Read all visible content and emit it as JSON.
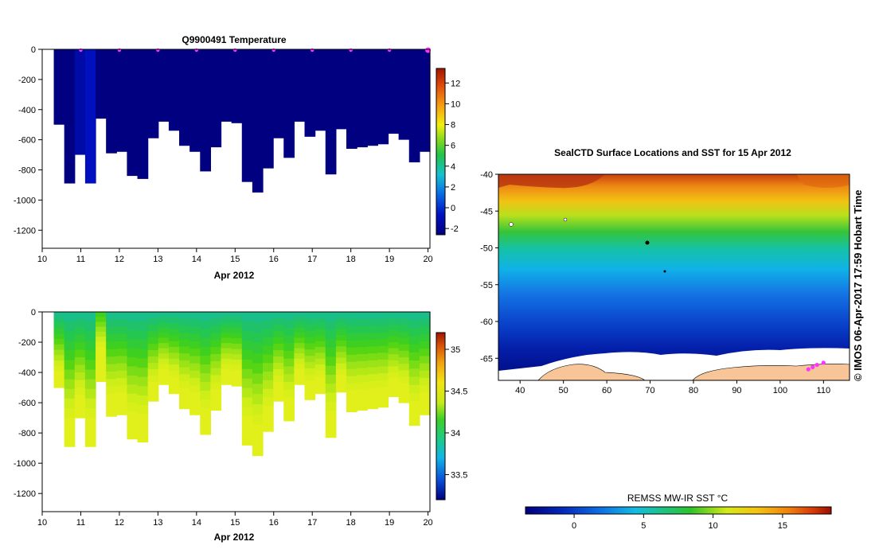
{
  "chart_data": [
    {
      "type": "heatmap",
      "title": "Q9900491  Temperature",
      "xlabel": "Apr 2012",
      "x_ticks": [
        "10",
        "11",
        "12",
        "13",
        "14",
        "15",
        "16",
        "17",
        "18",
        "19",
        "20"
      ],
      "y_ticks": [
        "0",
        "-200",
        "-400",
        "-600",
        "-800",
        "-1000",
        "-1200"
      ],
      "xlim": [
        10,
        20.05
      ],
      "ylim": [
        -1320,
        0
      ],
      "colorbar": {
        "ticks": [
          "-2",
          "0",
          "2",
          "4",
          "6",
          "8",
          "10",
          "12"
        ],
        "range": [
          -2.6,
          13.4
        ]
      },
      "surface_markers_days": [
        11,
        12,
        13,
        14,
        15,
        16,
        17,
        18,
        19,
        20
      ],
      "profile_depths_m": [
        -500,
        -890,
        -700,
        -890,
        -460,
        -690,
        -680,
        -840,
        -860,
        -590,
        -480,
        -540,
        -640,
        -680,
        -810,
        -650,
        -480,
        -490,
        -880,
        -950,
        -790,
        -590,
        -720,
        -480,
        -580,
        -540,
        -830,
        -530,
        -660,
        -650,
        -640,
        -630,
        -560,
        -600,
        -750,
        -680
      ],
      "profile_values_c": [
        0,
        0,
        0.5,
        1,
        0,
        0,
        0,
        0,
        0,
        0,
        0,
        0,
        0,
        0,
        0,
        0,
        0,
        0,
        0,
        0,
        0,
        0,
        0,
        0,
        0,
        0,
        0,
        0,
        0,
        0,
        0,
        0,
        0,
        0,
        0,
        0
      ]
    },
    {
      "type": "heatmap",
      "title": "",
      "xlabel": "Apr 2012",
      "x_ticks": [
        "10",
        "11",
        "12",
        "13",
        "14",
        "15",
        "16",
        "17",
        "18",
        "19",
        "20"
      ],
      "y_ticks": [
        "0",
        "-200",
        "-400",
        "-600",
        "-800",
        "-1000",
        "-1200"
      ],
      "xlim": [
        10,
        20.05
      ],
      "ylim": [
        -1320,
        0
      ],
      "colorbar": {
        "ticks": [
          "33.5",
          "34",
          "34.5",
          "35"
        ],
        "range": [
          33.2,
          35.2
        ]
      },
      "profile_depths_m": [
        -500,
        -890,
        -700,
        -890,
        -460,
        -690,
        -680,
        -840,
        -860,
        -590,
        -480,
        -540,
        -640,
        -680,
        -810,
        -650,
        -480,
        -490,
        -880,
        -950,
        -790,
        -590,
        -720,
        -480,
        -580,
        -540,
        -830,
        -530,
        -660,
        -650,
        -640,
        -630,
        -560,
        -600,
        -750,
        -680
      ]
    },
    {
      "type": "heatmap",
      "title": "SealCTD Surface Locations and SST for 15 Apr 2012",
      "xlabel": "",
      "ylabel": "",
      "x_ticks": [
        "40",
        "50",
        "60",
        "70",
        "80",
        "90",
        "100",
        "110"
      ],
      "y_ticks": [
        "-40",
        "-45",
        "-50",
        "-55",
        "-60",
        "-65"
      ],
      "xlim": [
        35,
        116
      ],
      "ylim": [
        -68,
        -40
      ],
      "colorbar": {
        "label": "REMSS MW-IR SST °C",
        "ticks": [
          "0",
          "5",
          "10",
          "15"
        ],
        "range": [
          -3.5,
          18.5
        ]
      },
      "track_points": [
        [
          106.5,
          -66.5
        ],
        [
          107.5,
          -66.2
        ],
        [
          108.5,
          -65.9
        ],
        [
          110.0,
          -65.6
        ]
      ]
    }
  ],
  "side_note": "©  IMOS 06-Apr-2017 17:59 Hobart Time",
  "colors": {
    "sea_ice": "#ffffff",
    "land": "#f7c597",
    "track": "#ff33ff",
    "axis": "#000000"
  }
}
